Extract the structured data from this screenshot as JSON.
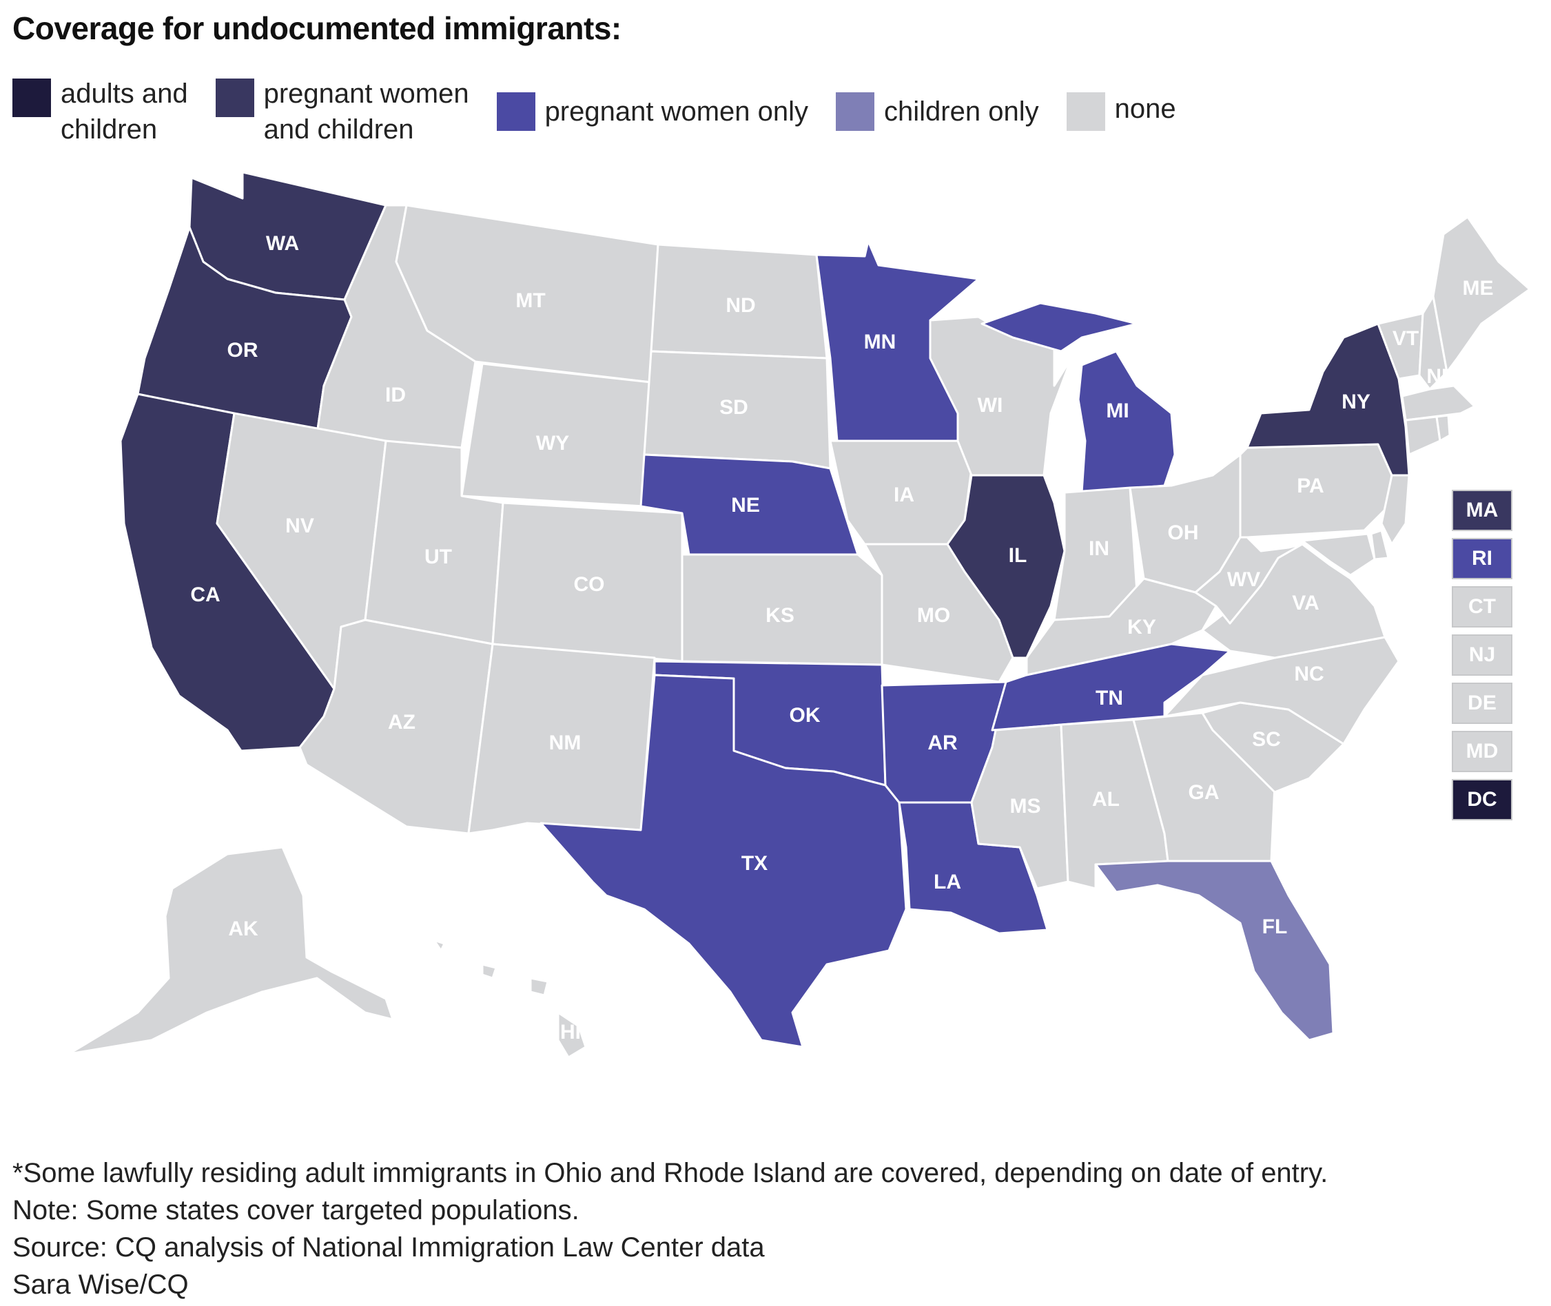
{
  "title": "Coverage for undocumented immigrants:",
  "colors": {
    "adults_and_children": "#1d1a3c",
    "pregnant_women_and_children": "#393760",
    "pregnant_women_only": "#4b4aa3",
    "children_only": "#7f7fb6",
    "none": "#d4d5d7"
  },
  "legend": [
    {
      "key": "adults_and_children",
      "line1": "adults and",
      "line2": "children"
    },
    {
      "key": "pregnant_women_and_children",
      "line1": "pregnant women",
      "line2": "and children"
    },
    {
      "key": "pregnant_women_only",
      "line1": "pregnant women only",
      "line2": ""
    },
    {
      "key": "children_only",
      "line1": "children only",
      "line2": ""
    },
    {
      "key": "none",
      "line1": "none",
      "line2": ""
    }
  ],
  "states": {
    "WA": "pregnant_women_and_children",
    "OR": "pregnant_women_and_children",
    "CA": "pregnant_women_and_children",
    "ID": "none",
    "NV": "none",
    "MT": "none",
    "WY": "none",
    "UT": "none",
    "AZ": "none",
    "CO": "none",
    "NM": "none",
    "ND": "none",
    "SD": "none",
    "NE": "pregnant_women_only",
    "KS": "none",
    "OK": "pregnant_women_only",
    "TX": "pregnant_women_only",
    "MN": "pregnant_women_only",
    "IA": "none",
    "MO": "none",
    "AR": "pregnant_women_only",
    "LA": "pregnant_women_only",
    "WI": "none",
    "IL": "pregnant_women_and_children",
    "MI": "pregnant_women_only",
    "IN": "none",
    "OH": "none",
    "KY": "none",
    "TN": "pregnant_women_only",
    "MS": "none",
    "AL": "none",
    "GA": "none",
    "FL": "children_only",
    "SC": "none",
    "NC": "none",
    "VA": "none",
    "WV": "none",
    "PA": "none",
    "NY": "pregnant_women_and_children",
    "VT": "none",
    "NH": "none",
    "ME": "none",
    "AK": "none",
    "HI": "none"
  },
  "boxes": [
    {
      "abbr": "MA",
      "key": "pregnant_women_and_children"
    },
    {
      "abbr": "RI",
      "key": "pregnant_women_only"
    },
    {
      "abbr": "CT",
      "key": "none"
    },
    {
      "abbr": "NJ",
      "key": "none"
    },
    {
      "abbr": "DE",
      "key": "none"
    },
    {
      "abbr": "MD",
      "key": "none"
    },
    {
      "abbr": "DC",
      "key": "adults_and_children"
    }
  ],
  "notes": {
    "footnote": "*Some lawfully residing adult immigrants in Ohio and Rhode Island are covered, depending on date of entry.",
    "note": "Note: Some states cover targeted populations.",
    "source": "Source: CQ analysis of National Immigration Law Center data",
    "credit": "Sara Wise/CQ"
  }
}
